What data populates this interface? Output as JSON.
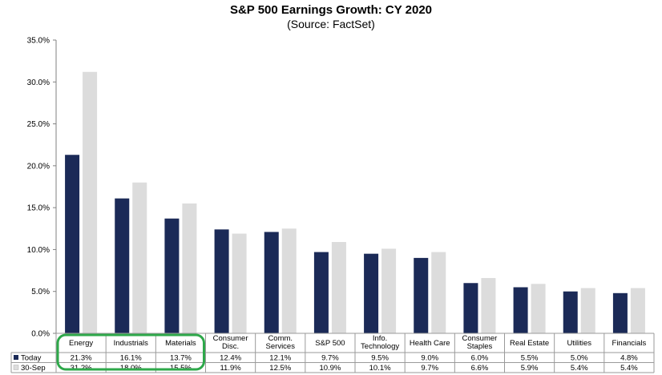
{
  "chart_data": {
    "type": "bar",
    "title": "S&P 500 Earnings Growth: CY 2020",
    "subtitle": "(Source: FactSet)",
    "categories": [
      [
        "Energy"
      ],
      [
        "Industrials"
      ],
      [
        "Materials"
      ],
      [
        "Consumer",
        "Disc."
      ],
      [
        "Comm.",
        "Services"
      ],
      [
        "S&P 500"
      ],
      [
        "Info.",
        "Technology"
      ],
      [
        "Health Care"
      ],
      [
        "Consumer",
        "Staples"
      ],
      [
        "Real Estate"
      ],
      [
        "Utilities"
      ],
      [
        "Financials"
      ]
    ],
    "series": [
      {
        "name": "Today",
        "color": "#1b2a57",
        "values": [
          21.3,
          16.1,
          13.7,
          12.4,
          12.1,
          9.7,
          9.5,
          9.0,
          6.0,
          5.5,
          5.0,
          4.8
        ],
        "labels": [
          "21.3%",
          "16.1%",
          "13.7%",
          "12.4%",
          "12.1%",
          "9.7%",
          "9.5%",
          "9.0%",
          "6.0%",
          "5.5%",
          "5.0%",
          "4.8%"
        ]
      },
      {
        "name": "30-Sep",
        "color": "#dcdcdc",
        "values": [
          31.2,
          18.0,
          15.5,
          11.9,
          12.5,
          10.9,
          10.1,
          9.7,
          6.6,
          5.9,
          5.4,
          5.4
        ],
        "labels": [
          "31.2%",
          "18.0%",
          "15.5%",
          "11.9%",
          "12.5%",
          "10.9%",
          "10.1%",
          "9.7%",
          "6.6%",
          "5.9%",
          "5.4%",
          "5.4%"
        ]
      }
    ],
    "ylim": [
      0,
      35
    ],
    "yticks": [
      "0.0%",
      "5.0%",
      "10.0%",
      "15.0%",
      "20.0%",
      "25.0%",
      "30.0%",
      "35.0%"
    ],
    "legend": "data-table",
    "highlight": {
      "categories": [
        0,
        1,
        2
      ],
      "color": "#2ea84a"
    }
  }
}
